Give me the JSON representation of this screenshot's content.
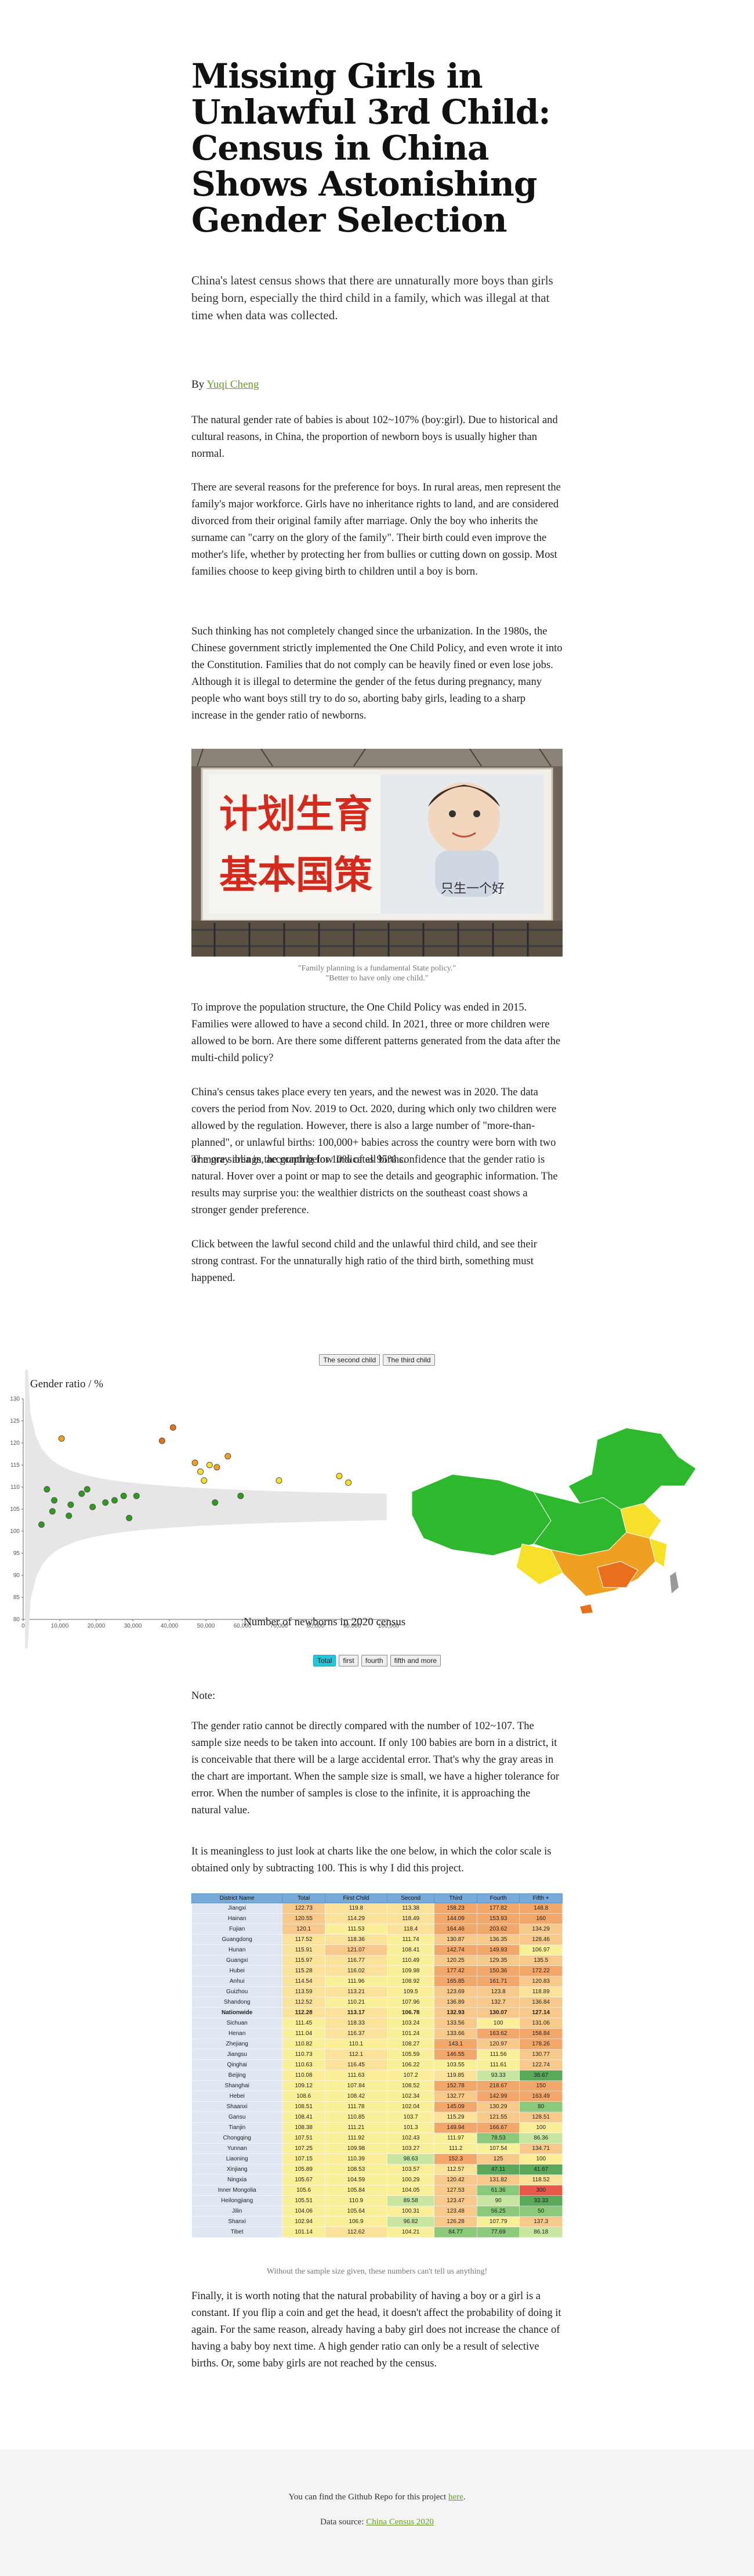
{
  "article": {
    "title": "Missing Girls in Unlawful 3rd Child: Census in China Shows Astonishing Gender Selection",
    "dek": "China's latest census shows that there are unnaturally more boys than girls being born, especially the third child in a family, which was illegal at that time when data was collected.",
    "byline_prefix": "By",
    "author": "Yuqi Cheng",
    "paragraphs": [
      "The natural gender rate of babies is about 102~107% (boy:girl). Due to historical and cultural reasons, in China, the proportion of newborn boys is usually higher than normal.",
      "There are several reasons for the preference for boys. In rural areas, men represent the family's major workforce. Girls have no inheritance rights to land, and are considered divorced from their original family after marriage. Only the boy who inherits the surname can \"carry on the glory of the family\". Their birth could even improve the mother's life, whether by protecting her from bullies or cutting down on gossip. Most families choose to keep giving birth to children until a boy is born.",
      "Such thinking has not completely changed since the urbanization. In the 1980s, the Chinese government strictly implemented the One Child Policy, and even wrote it into the Constitution. Families that do not comply can be heavily fined or even lose jobs. Although it is illegal to determine the gender of the fetus during pregnancy, many people who want boys still try to do so, aborting baby girls, leading to a sharp increase in the gender ratio of newborns.",
      "To improve the population structure, the One Child Policy was ended in 2015. Families were allowed to have a second child. In 2021, three or more children were allowed to be born. Are there some different patterns generated from the data after the multi-child policy?",
      "China's census takes place every ten years, and the newest was in 2020. The data covers the period from Nov. 2019 to Oct. 2020, during which only two children were allowed by the regulation. However, there is also a large number of \"more-than-planned\", or unlawful births: 100,000+ babies across the country were born with two or more siblings, accounting for 10% of all births.",
      "The gray area in the graph below indicates 95% confidence that the gender ratio is natural. Hover over a point or map to see the details and geographic information. The results may surprise you: the wealthier districts on the southeast coast shows a stronger gender preference.",
      "Click between the lawful second child and the unlawful third child, and see their strong contrast. For the unnaturally high ratio of the third birth, something must happened."
    ],
    "photo": {
      "sign_line_1": "计划生育",
      "sign_line_2": "基本国策",
      "sign_small": "只生一个好"
    },
    "photo_caption_1": "\"Family planning is a fundamental State policy.\"",
    "photo_caption_2": "\"Better to have only one child.\""
  },
  "chart_toggle": {
    "second": "The second child",
    "third": "The third child"
  },
  "chart_data": {
    "type": "scatter",
    "ylabel": "Gender ratio / %",
    "xlabel": "Number of newborns in 2020 census year",
    "x_ticks": [
      "0",
      "10,000",
      "20,000",
      "30,000",
      "40,000",
      "50,000",
      "60,000",
      "70,000",
      "80,000",
      "90,000",
      "100,000"
    ],
    "y_ticks": [
      "80",
      "85",
      "90",
      "95",
      "100",
      "105",
      "110",
      "115",
      "120",
      "125",
      "130"
    ],
    "xlim": [
      0,
      100000
    ],
    "ylim": [
      80,
      130
    ],
    "confidence_band": "95% natural ratio",
    "points": [
      {
        "x": 5000,
        "y": 101.5,
        "color": "#2e9c1a"
      },
      {
        "x": 6500,
        "y": 109.5,
        "color": "#2e9c1a"
      },
      {
        "x": 8000,
        "y": 104.5,
        "color": "#2e9c1a"
      },
      {
        "x": 8500,
        "y": 107.0,
        "color": "#2e9c1a"
      },
      {
        "x": 10500,
        "y": 121.0,
        "color": "#f0a020"
      },
      {
        "x": 12500,
        "y": 103.5,
        "color": "#2e9c1a"
      },
      {
        "x": 13000,
        "y": 106.0,
        "color": "#2e9c1a"
      },
      {
        "x": 16000,
        "y": 108.5,
        "color": "#2e9c1a"
      },
      {
        "x": 17500,
        "y": 109.5,
        "color": "#2e9c1a"
      },
      {
        "x": 19000,
        "y": 105.5,
        "color": "#2e9c1a"
      },
      {
        "x": 22500,
        "y": 106.5,
        "color": "#2e9c1a"
      },
      {
        "x": 25000,
        "y": 107.0,
        "color": "#2e9c1a"
      },
      {
        "x": 27500,
        "y": 108.0,
        "color": "#2e9c1a"
      },
      {
        "x": 29000,
        "y": 103.0,
        "color": "#2e9c1a"
      },
      {
        "x": 31000,
        "y": 108.0,
        "color": "#2e9c1a"
      },
      {
        "x": 38000,
        "y": 120.5,
        "color": "#e86f1d"
      },
      {
        "x": 41000,
        "y": 123.5,
        "color": "#e86f1d"
      },
      {
        "x": 47000,
        "y": 115.5,
        "color": "#f0a020"
      },
      {
        "x": 48500,
        "y": 113.5,
        "color": "#f7e02a"
      },
      {
        "x": 49500,
        "y": 111.5,
        "color": "#f7e02a"
      },
      {
        "x": 51000,
        "y": 115.0,
        "color": "#f7e02a"
      },
      {
        "x": 53000,
        "y": 114.5,
        "color": "#f0a020"
      },
      {
        "x": 52500,
        "y": 106.5,
        "color": "#2e9c1a"
      },
      {
        "x": 56000,
        "y": 117.0,
        "color": "#f0a020"
      },
      {
        "x": 59500,
        "y": 108.0,
        "color": "#2e9c1a"
      },
      {
        "x": 70000,
        "y": 111.5,
        "color": "#f7e02a"
      },
      {
        "x": 86500,
        "y": 112.5,
        "color": "#f7e02a"
      },
      {
        "x": 89000,
        "y": 111.0,
        "color": "#f7e02a"
      }
    ]
  },
  "map": {
    "legend_note": "China map colored by gender ratio",
    "colors": {
      "low": "#2eb82e",
      "mid": "#f7e02a",
      "high": "#f0a020",
      "very_high": "#e86f1d",
      "none": "#999999"
    }
  },
  "order_buttons": [
    "Total",
    "first",
    "fourth",
    "fifth and more"
  ],
  "note_heading": "Note:",
  "notes": [
    "The gender ratio cannot be directly compared with the number of 102~107. The sample size needs to be taken into account. If only 100 babies are born in a district, it is conceivable that there will be a large accidental error. That's why the gray areas in the chart are important. When the sample size is small, we have a higher tolerance for error. When the number of samples is close to the infinite, it is approaching the natural value.",
    "It is meaningless to just look at charts like the one below, in which the color scale is obtained only by subtracting 100. This is why I did this project."
  ],
  "table": {
    "headers": [
      "District Name",
      "Total",
      "First Child",
      "Second",
      "Third",
      "Fourth",
      "Fifth +"
    ],
    "rows": [
      [
        "Jiangxi",
        "122.73",
        "119.8",
        "113.38",
        "158.23",
        "177.82",
        "148.8"
      ],
      [
        "Hainan",
        "120.55",
        "114.29",
        "118.49",
        "144.09",
        "153.93",
        "160"
      ],
      [
        "Fujian",
        "120.1",
        "111.53",
        "118.4",
        "164.46",
        "203.62",
        "134.29"
      ],
      [
        "Guangdong",
        "117.52",
        "118.36",
        "111.74",
        "130.87",
        "136.35",
        "128.46"
      ],
      [
        "Hunan",
        "115.91",
        "121.07",
        "108.41",
        "142.74",
        "149.93",
        "106.97"
      ],
      [
        "Guangxi",
        "115.97",
        "116.77",
        "110.49",
        "120.25",
        "129.35",
        "135.5"
      ],
      [
        "Hubei",
        "115.28",
        "116.02",
        "109.98",
        "177.42",
        "150.36",
        "172.22"
      ],
      [
        "Anhui",
        "114.54",
        "111.96",
        "108.92",
        "165.85",
        "161.71",
        "120.83"
      ],
      [
        "Guizhou",
        "113.59",
        "113.21",
        "109.5",
        "123.69",
        "123.8",
        "118.89"
      ],
      [
        "Shandong",
        "112.52",
        "110.21",
        "107.96",
        "136.89",
        "132.7",
        "136.84"
      ],
      [
        "Nationwide",
        "112.28",
        "113.17",
        "106.78",
        "132.93",
        "130.07",
        "127.14"
      ],
      [
        "Sichuan",
        "111.45",
        "118.33",
        "103.24",
        "133.56",
        "100",
        "131.06"
      ],
      [
        "Henan",
        "111.04",
        "116.37",
        "101.24",
        "133.66",
        "163.62",
        "158.84"
      ],
      [
        "Zhejiang",
        "110.82",
        "110.1",
        "108.27",
        "143.1",
        "120.97",
        "178.26"
      ],
      [
        "Jiangsu",
        "110.73",
        "112.1",
        "105.59",
        "146.55",
        "111.56",
        "130.77"
      ],
      [
        "Qinghai",
        "110.63",
        "116.45",
        "106.22",
        "103.55",
        "111.61",
        "122.74"
      ],
      [
        "Beijing",
        "110.08",
        "111.63",
        "107.2",
        "119.85",
        "93.33",
        "38.67"
      ],
      [
        "Shanghai",
        "109.12",
        "107.84",
        "108.52",
        "152.78",
        "218.67",
        "150"
      ],
      [
        "Hebei",
        "108.6",
        "108.42",
        "102.34",
        "132.77",
        "142.99",
        "163.49"
      ],
      [
        "Shaanxi",
        "108.51",
        "111.78",
        "102.04",
        "145.09",
        "130.29",
        "80"
      ],
      [
        "Gansu",
        "108.41",
        "110.85",
        "103.7",
        "115.29",
        "121.55",
        "128.51"
      ],
      [
        "Tianjin",
        "108.38",
        "111.21",
        "101.3",
        "149.94",
        "166.67",
        "100"
      ],
      [
        "Chongqing",
        "107.51",
        "111.92",
        "102.43",
        "111.97",
        "78.53",
        "86.36"
      ],
      [
        "Yunnan",
        "107.25",
        "109.98",
        "103.27",
        "111.2",
        "107.54",
        "134.71"
      ],
      [
        "Liaoning",
        "107.15",
        "110.39",
        "98.63",
        "152.3",
        "125",
        "100"
      ],
      [
        "Xinjiang",
        "105.89",
        "108.53",
        "103.57",
        "112.57",
        "47.11",
        "41.67"
      ],
      [
        "Ningxia",
        "105.67",
        "104.59",
        "100.29",
        "120.42",
        "131.82",
        "118.52"
      ],
      [
        "Inner Mongolia",
        "105.6",
        "105.84",
        "104.05",
        "127.53",
        "61.36",
        "300"
      ],
      [
        "Heilongjiang",
        "105.51",
        "110.9",
        "89.58",
        "123.47",
        "90",
        "33.33"
      ],
      [
        "Jilin",
        "104.06",
        "105.64",
        "100.31",
        "123.48",
        "56.25",
        "50"
      ],
      [
        "Shanxi",
        "102.94",
        "106.9",
        "96.82",
        "126.28",
        "107.79",
        "137.3"
      ],
      [
        "Tibet",
        "101.14",
        "112.62",
        "104.21",
        "84.77",
        "77.69",
        "86.18"
      ]
    ],
    "caption": "Without the sample size given, these numbers can't tell us anything!"
  },
  "closing": "Finally, it is worth noting that the natural probability of having a boy or a girl is a constant. If you flip a coin and get the head, it doesn't affect the probability of doing it again. For the same reason, already having a baby girl does not increase the chance of having a baby boy next time. A high gender ratio can only be a result of selective births. Or, some baby girls are not reached by the census.",
  "footer": {
    "repo_text": "You can find the Github Repo for this project",
    "repo_link": "here",
    "repo_end": ".",
    "source_label": "Data source:",
    "source_link": "China Census 2020"
  }
}
